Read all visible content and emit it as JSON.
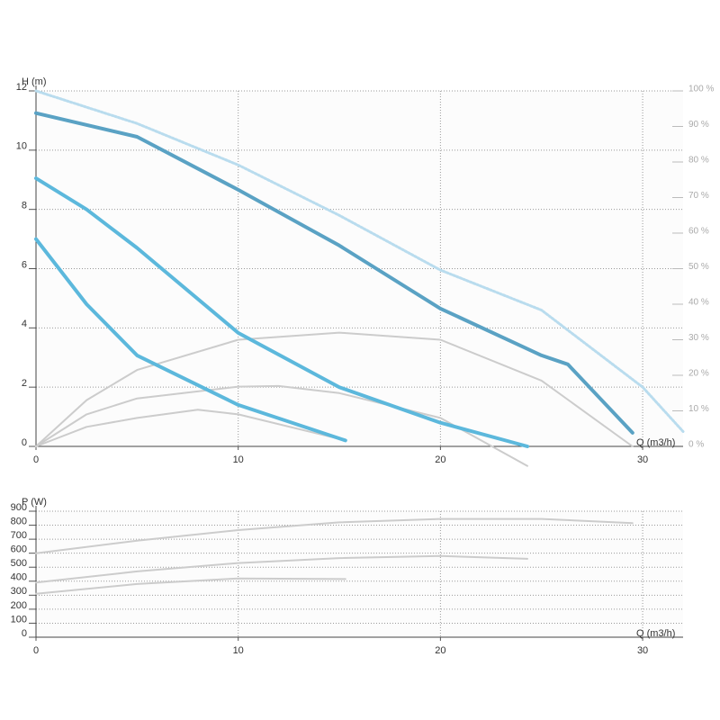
{
  "chart_data": [
    {
      "type": "line",
      "y_label": "H (m)",
      "x_label": "Q (m3/h)",
      "xlim": [
        0,
        32
      ],
      "ylim": [
        0,
        12
      ],
      "y2lim": [
        0,
        100
      ],
      "xticks": [
        0,
        10,
        20,
        30
      ],
      "yticks": [
        0,
        2,
        4,
        6,
        8,
        10,
        12
      ],
      "y2ticks": [
        {
          "value": 0,
          "label": "0 %"
        },
        {
          "value": 10,
          "label": "10 %"
        },
        {
          "value": 20,
          "label": "20 %"
        },
        {
          "value": 30,
          "label": "30 %"
        },
        {
          "value": 40,
          "label": "40 %"
        },
        {
          "value": 50,
          "label": "50 %"
        },
        {
          "value": 60,
          "label": "60 %"
        },
        {
          "value": 70,
          "label": "70 %"
        },
        {
          "value": 80,
          "label": "80 %"
        },
        {
          "value": 90,
          "label": "90 %"
        },
        {
          "value": 100,
          "label": "100 %"
        }
      ],
      "grid": true,
      "series": [
        {
          "color": "#b9dcee",
          "dashed": true,
          "x": [
            0,
            5,
            10,
            15,
            20,
            25,
            30,
            32
          ],
          "values": [
            12,
            10.9,
            9.5,
            7.8,
            5.95,
            4.6,
            2.0,
            0.5
          ]
        },
        {
          "color": "#cccccc",
          "axis": "y2",
          "x": [
            0,
            2.5,
            5,
            10,
            15,
            20,
            25,
            29.5
          ],
          "values": [
            0,
            13,
            21.5,
            30,
            32,
            30,
            18.5,
            0
          ]
        },
        {
          "color": "#cccccc",
          "axis": "y2",
          "x": [
            0,
            2.5,
            5,
            10,
            12,
            15,
            20,
            24.3
          ],
          "values": [
            0,
            9,
            13.5,
            16.8,
            17,
            15,
            8,
            -5.5
          ]
        },
        {
          "color": "#cccccc",
          "axis": "y2",
          "x": [
            0,
            2.5,
            5,
            8,
            10,
            15.3
          ],
          "values": [
            0,
            5.5,
            8,
            10.3,
            9,
            1.7
          ]
        },
        {
          "color": "#5aa2c4",
          "x": [
            0,
            5,
            10,
            15,
            20,
            25,
            26.3,
            29.5
          ],
          "values": [
            11.25,
            10.45,
            8.66,
            6.78,
            4.65,
            3.07,
            2.77,
            0.46
          ]
        },
        {
          "color": "#5cb8dc",
          "x": [
            0,
            2.5,
            5,
            10,
            15,
            20,
            24.3
          ],
          "values": [
            9.05,
            8.0,
            6.7,
            3.83,
            2.0,
            0.8,
            0
          ]
        },
        {
          "color": "#5cb8dc",
          "x": [
            0,
            2.5,
            5,
            10,
            15.3
          ],
          "values": [
            7.0,
            4.8,
            3.07,
            1.4,
            0.2
          ]
        }
      ]
    },
    {
      "type": "line",
      "y_label": "P (W)",
      "x_label": "Q (m3/h)",
      "xlim": [
        0,
        32
      ],
      "ylim": [
        0,
        900
      ],
      "xticks": [
        0,
        10,
        20,
        30
      ],
      "yticks": [
        0,
        100,
        200,
        300,
        400,
        500,
        600,
        700,
        800,
        900
      ],
      "grid": true,
      "series": [
        {
          "color": "#cccccc",
          "x": [
            0,
            5,
            10,
            15,
            20,
            25,
            29.5
          ],
          "values": [
            600,
            690,
            765,
            820,
            845,
            845,
            815
          ]
        },
        {
          "color": "#cccccc",
          "x": [
            0,
            5,
            10,
            15,
            20,
            24.3
          ],
          "values": [
            390,
            470,
            530,
            565,
            580,
            560
          ]
        },
        {
          "color": "#cccccc",
          "x": [
            0,
            5,
            10,
            15.3
          ],
          "values": [
            310,
            380,
            420,
            415
          ]
        }
      ]
    }
  ]
}
